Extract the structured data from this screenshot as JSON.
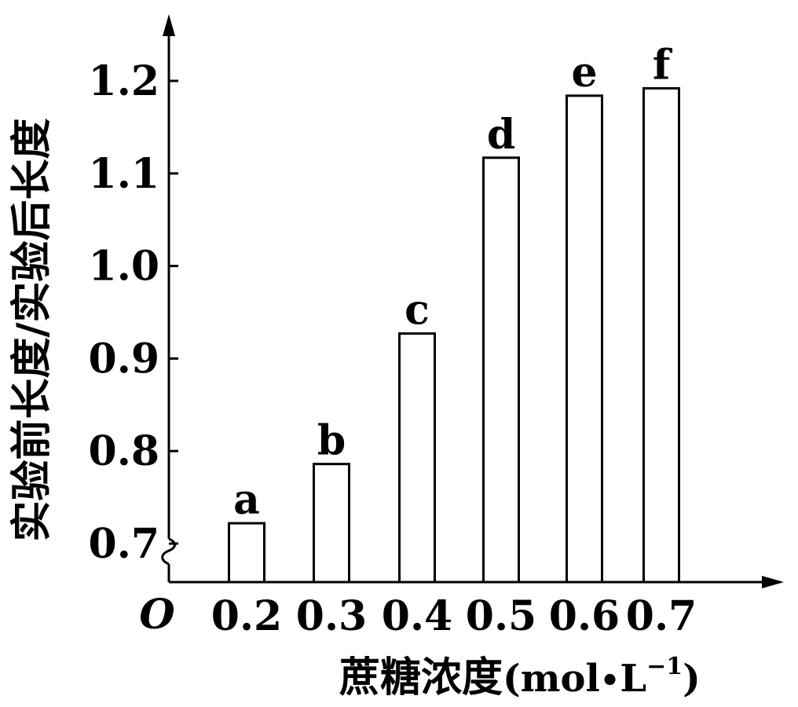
{
  "chart_data": {
    "type": "bar",
    "categories": [
      "0.2",
      "0.3",
      "0.4",
      "0.5",
      "0.6",
      "0.7"
    ],
    "values": [
      0.722,
      0.786,
      0.927,
      1.117,
      1.184,
      1.192
    ],
    "bar_labels": [
      "a",
      "b",
      "c",
      "d",
      "e",
      "f"
    ],
    "ylabel": "实验前长度/实验后长度",
    "xlabel_main": "蔗糖浓度",
    "xlabel_unit_open": "(mol",
    "xlabel_unit_dot": "•",
    "xlabel_unit_L": "L",
    "xlabel_unit_exp": "−1",
    "xlabel_unit_close": ")",
    "origin_label": "O",
    "yticks": [
      {
        "value": 0.7,
        "label": "0.7"
      },
      {
        "value": 0.8,
        "label": "0.8"
      },
      {
        "value": 0.9,
        "label": "0.9"
      },
      {
        "value": 1.0,
        "label": "1.0"
      },
      {
        "value": 1.1,
        "label": "1.1"
      },
      {
        "value": 1.2,
        "label": "1.2"
      }
    ],
    "ylim": [
      0.7,
      1.2
    ],
    "y_axis_break": true,
    "grid": false
  }
}
